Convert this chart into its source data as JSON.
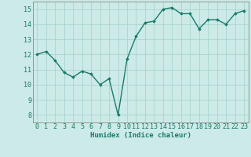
{
  "x": [
    0,
    1,
    2,
    3,
    4,
    5,
    6,
    7,
    8,
    9,
    10,
    11,
    12,
    13,
    14,
    15,
    16,
    17,
    18,
    19,
    20,
    21,
    22,
    23
  ],
  "y": [
    12.0,
    12.2,
    11.6,
    10.8,
    10.5,
    10.9,
    10.7,
    10.0,
    10.4,
    8.0,
    11.7,
    13.2,
    14.1,
    14.2,
    15.0,
    15.1,
    14.7,
    14.7,
    13.7,
    14.3,
    14.3,
    14.0,
    14.7,
    14.9
  ],
  "line_color": "#1a7a6a",
  "marker": "D",
  "marker_size": 1.8,
  "bg_color": "#cceae7",
  "grid_color": "#aad4d0",
  "xlabel": "Humidex (Indice chaleur)",
  "xlabel_fontsize": 6.5,
  "tick_label_fontsize": 6,
  "xlim": [
    -0.5,
    23.5
  ],
  "ylim": [
    7.5,
    15.5
  ],
  "yticks": [
    8,
    9,
    10,
    11,
    12,
    13,
    14,
    15
  ],
  "xticks": [
    0,
    1,
    2,
    3,
    4,
    5,
    6,
    7,
    8,
    9,
    10,
    11,
    12,
    13,
    14,
    15,
    16,
    17,
    18,
    19,
    20,
    21,
    22,
    23
  ],
  "line_width": 1.0,
  "tick_color": "#1a7a6a",
  "label_color": "#1a7a6a",
  "spine_color": "#888888"
}
